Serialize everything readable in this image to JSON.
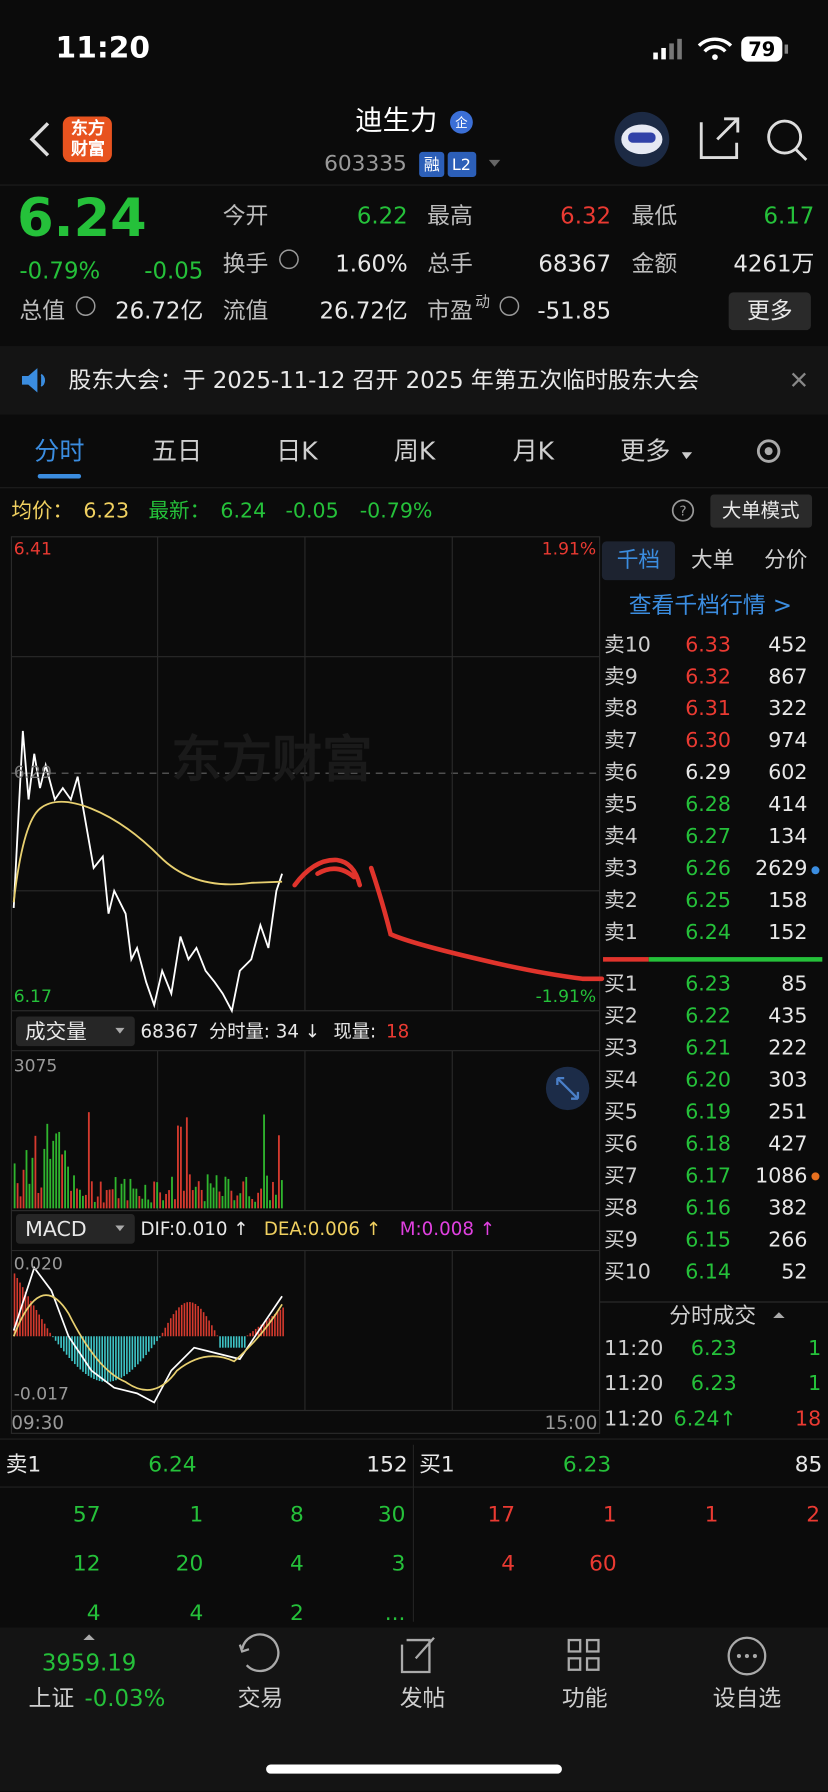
{
  "status": {
    "time": "11:20",
    "battery": "79"
  },
  "header": {
    "logo": [
      "东方",
      "财富"
    ],
    "name": "迪生力",
    "badge": "企",
    "code": "603335",
    "tags": [
      "融",
      "L2"
    ]
  },
  "quote": {
    "price": "6.24",
    "change_pct": "-0.79%",
    "change": "-0.05",
    "fields": [
      {
        "label": "今开",
        "value": "6.22",
        "color": "green"
      },
      {
        "label": "最高",
        "value": "6.32",
        "color": "red"
      },
      {
        "label": "最低",
        "value": "6.17",
        "color": "green"
      },
      {
        "label": "换手",
        "value": "1.60%",
        "color": "white"
      },
      {
        "label": "总手",
        "value": "68367",
        "color": "white"
      },
      {
        "label": "金额",
        "value": "4261万",
        "color": "white"
      },
      {
        "label": "总值",
        "value": "26.72亿",
        "color": "white"
      },
      {
        "label": "流值",
        "value": "26.72亿",
        "color": "white"
      },
      {
        "label": "市盈",
        "sup": "动",
        "value": "-51.85",
        "color": "white"
      }
    ],
    "more": "更多"
  },
  "announcement": "股东大会：于 2025-11-12 召开 2025 年第五次临时股东大会",
  "tabs": [
    "分时",
    "五日",
    "日K",
    "周K",
    "月K",
    "更多"
  ],
  "intraday": {
    "avg_label": "均价：",
    "avg": "6.23",
    "last_label": "最新：",
    "last": "6.24",
    "change": "-0.05",
    "change_pct": "-0.79%",
    "mode": "大单模式",
    "top_price": "6.41",
    "top_pct": "1.91%",
    "mid_price": "6.29",
    "bottom_price": "6.17",
    "bottom_pct": "-1.91%",
    "watermark": "东方财富",
    "volume_title": "成交量",
    "volume_total": "68367",
    "tick_volume": "分时量: 34 ↓",
    "current_label": "现量:",
    "current": "18",
    "volume_max": "3075",
    "macd_title": "MACD",
    "dif": "DIF:0.010 ↑",
    "dea": "DEA:0.006 ↑",
    "m": "M:0.008 ↑",
    "macd_max": "0.020",
    "macd_min": "-0.017",
    "start_time": "09:30",
    "end_time": "15:00"
  },
  "book": {
    "tabs": [
      "千档",
      "大单",
      "分价"
    ],
    "link": "查看千档行情 >",
    "sell": [
      {
        "label": "卖10",
        "price": "6.33",
        "volume": "452",
        "color": "red"
      },
      {
        "label": "卖9",
        "price": "6.32",
        "volume": "867",
        "color": "red"
      },
      {
        "label": "卖8",
        "price": "6.31",
        "volume": "322",
        "color": "red"
      },
      {
        "label": "卖7",
        "price": "6.30",
        "volume": "974",
        "color": "red"
      },
      {
        "label": "卖6",
        "price": "6.29",
        "volume": "602",
        "color": "white"
      },
      {
        "label": "卖5",
        "price": "6.28",
        "volume": "414",
        "color": "green"
      },
      {
        "label": "卖4",
        "price": "6.27",
        "volume": "134",
        "color": "green"
      },
      {
        "label": "卖3",
        "price": "6.26",
        "volume": "2629",
        "color": "green"
      },
      {
        "label": "卖2",
        "price": "6.25",
        "volume": "158",
        "color": "green"
      },
      {
        "label": "卖1",
        "price": "6.24",
        "volume": "152",
        "color": "green"
      }
    ],
    "buy": [
      {
        "label": "买1",
        "price": "6.23",
        "volume": "85",
        "color": "green"
      },
      {
        "label": "买2",
        "price": "6.22",
        "volume": "435",
        "color": "green"
      },
      {
        "label": "买3",
        "price": "6.21",
        "volume": "222",
        "color": "green"
      },
      {
        "label": "买4",
        "price": "6.20",
        "volume": "303",
        "color": "green"
      },
      {
        "label": "买5",
        "price": "6.19",
        "volume": "251",
        "color": "green"
      },
      {
        "label": "买6",
        "price": "6.18",
        "volume": "427",
        "color": "green"
      },
      {
        "label": "买7",
        "price": "6.17",
        "volume": "1086",
        "color": "green"
      },
      {
        "label": "买8",
        "price": "6.16",
        "volume": "382",
        "color": "green"
      },
      {
        "label": "买9",
        "price": "6.15",
        "volume": "266",
        "color": "green"
      },
      {
        "label": "买10",
        "price": "6.14",
        "volume": "52",
        "color": "green"
      }
    ],
    "trades_title": "分时成交",
    "trades": [
      {
        "time": "11:20",
        "price": "6.23",
        "volume": "1",
        "color": "green"
      },
      {
        "time": "11:20",
        "price": "6.23",
        "volume": "1",
        "color": "green"
      },
      {
        "time": "11:20",
        "price": "6.24↑",
        "volume": "18",
        "color": "red"
      }
    ]
  },
  "detail": {
    "sell1": {
      "label": "卖1",
      "price": "6.24",
      "volume": "152"
    },
    "buy1": {
      "label": "买1",
      "price": "6.23",
      "volume": "85"
    },
    "sell_orders": [
      [
        "57",
        "1",
        "8",
        "30"
      ],
      [
        "12",
        "20",
        "4",
        "3"
      ],
      [
        "4",
        "4",
        "2",
        "..."
      ]
    ],
    "buy_orders": [
      [
        "17",
        "1",
        "1",
        "2"
      ],
      [
        "4",
        "60"
      ]
    ]
  },
  "tabbar": {
    "index_value": "3959.19",
    "index_name": "上证",
    "index_change": "-0.03%",
    "items": [
      "交易",
      "发帖",
      "功能",
      "设自选"
    ]
  }
}
